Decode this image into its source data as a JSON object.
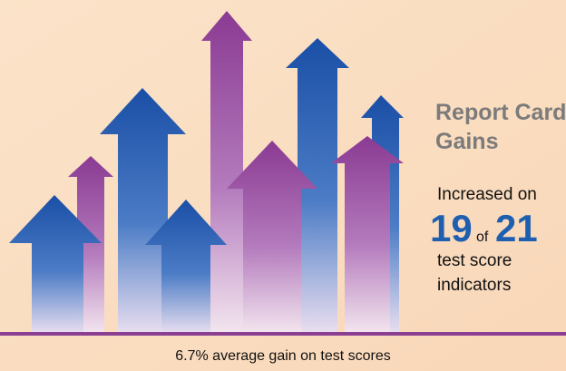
{
  "heading": {
    "title_line1": "Report Card",
    "title_line2": "Gains"
  },
  "stat": {
    "intro": "Increased on",
    "count": "19",
    "joiner": "of",
    "total": "21",
    "line1": "test score",
    "line2": "indicators"
  },
  "footer": "6.7% average gain on test scores"
}
